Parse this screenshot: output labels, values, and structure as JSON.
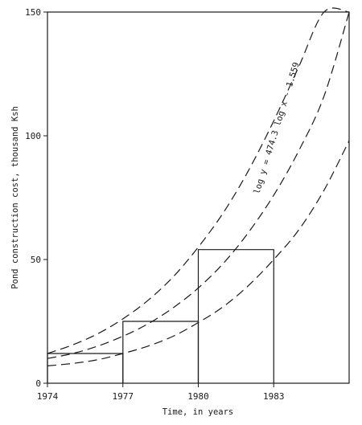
{
  "chart_data": {
    "type": "line",
    "title": "",
    "xlabel": "Time, in years",
    "ylabel": "Pond construction cost, thousand Ksh",
    "xlim": [
      1974,
      1986
    ],
    "ylim": [
      0,
      150
    ],
    "x_ticks": [
      1974,
      1977,
      1980,
      1983
    ],
    "y_ticks": [
      0,
      50,
      100,
      150
    ],
    "x_tick_labels": [
      "1974",
      "1977",
      "1980",
      "1983"
    ],
    "y_tick_labels": [
      "0",
      "50",
      "100",
      "150"
    ],
    "grid": false,
    "annotation": "log y = 474.3 log x - 1.559",
    "dashed_curves": [
      {
        "x": [
          1974,
          1975,
          1976,
          1977,
          1978,
          1979,
          1980,
          1981,
          1982,
          1983,
          1984,
          1985,
          1986
        ],
        "y": [
          12,
          15.5,
          20,
          26,
          33.5,
          43,
          55,
          69,
          86,
          106,
          128,
          150,
          150
        ]
      },
      {
        "x": [
          1974,
          1975,
          1976,
          1977,
          1978,
          1979,
          1980,
          1981,
          1982,
          1983,
          1984,
          1985,
          1986
        ],
        "y": [
          10,
          12,
          15,
          19,
          24,
          30.5,
          38.5,
          48.5,
          61,
          76,
          94,
          116,
          150
        ]
      },
      {
        "x": [
          1974,
          1975,
          1976,
          1977,
          1978,
          1979,
          1980,
          1981,
          1982,
          1983,
          1984,
          1985,
          1986
        ],
        "y": [
          7,
          8,
          9.5,
          12,
          15,
          19,
          24.5,
          31,
          39.5,
          50,
          62,
          78,
          98
        ]
      }
    ],
    "step_bars": [
      {
        "x_start": 1974,
        "x_end": 1977,
        "value": 12
      },
      {
        "x_start": 1977,
        "x_end": 1980,
        "value": 25
      },
      {
        "x_start": 1980,
        "x_end": 1983,
        "value": 54
      }
    ]
  }
}
